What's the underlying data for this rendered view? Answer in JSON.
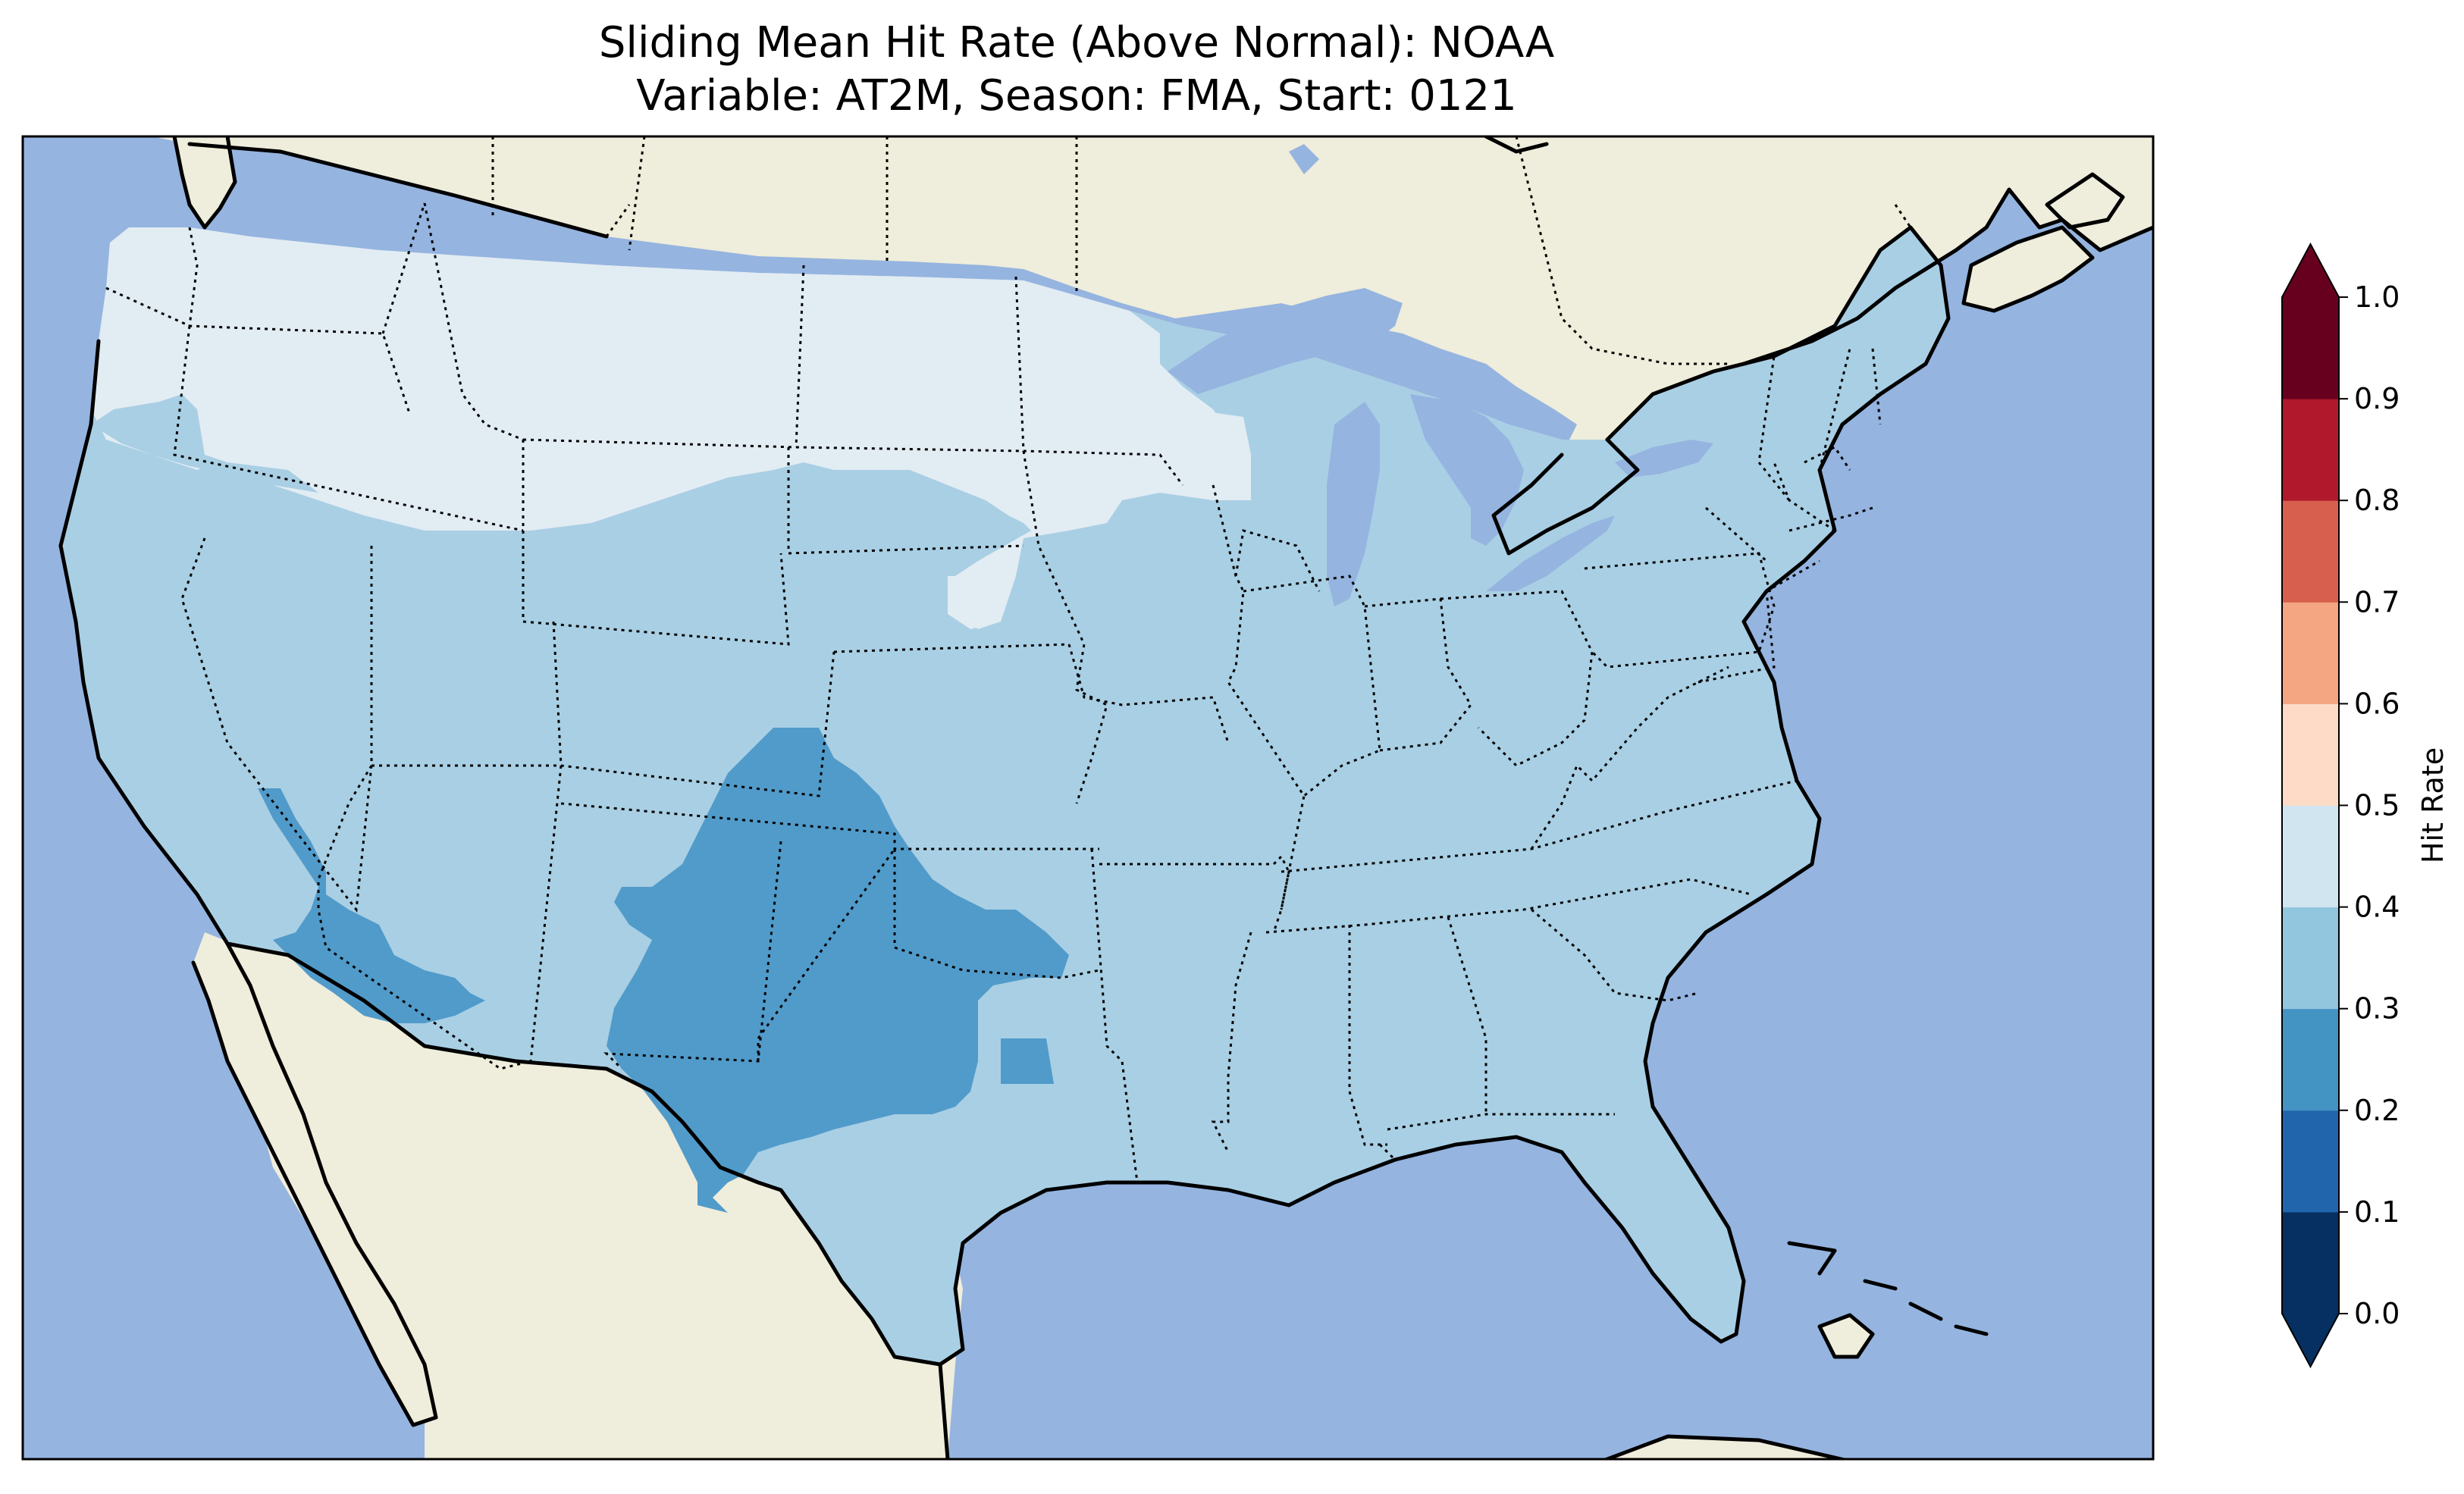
{
  "title": {
    "line1": "Sliding Mean Hit Rate (Above Normal): NOAA",
    "line2": "Variable: AT2M, Season: FMA, Start: 0121"
  },
  "colors": {
    "ocean": "#95b4e0",
    "land": "#efeddb",
    "lakes": "#95b4e0"
  },
  "colorbar": {
    "label": "Hit Rate",
    "ticks": [
      "0.0",
      "0.1",
      "0.2",
      "0.3",
      "0.4",
      "0.5",
      "0.6",
      "0.7",
      "0.8",
      "0.9",
      "1.0"
    ],
    "colors": [
      "#053061",
      "#2166ac",
      "#4393c3",
      "#92c5de",
      "#d1e5f0",
      "#fddbc7",
      "#f4a582",
      "#d6604d",
      "#b2182b",
      "#67001f"
    ],
    "under_color": "#053061",
    "over_color": "#67001f"
  },
  "map": {
    "fields": [
      {
        "name": "band-0.4-0.5",
        "color": "#e2ecf3"
      },
      {
        "name": "band-0.3-0.4",
        "color": "#a9cfe4"
      },
      {
        "name": "band-0.2-0.3",
        "color": "#519bca"
      }
    ]
  }
}
